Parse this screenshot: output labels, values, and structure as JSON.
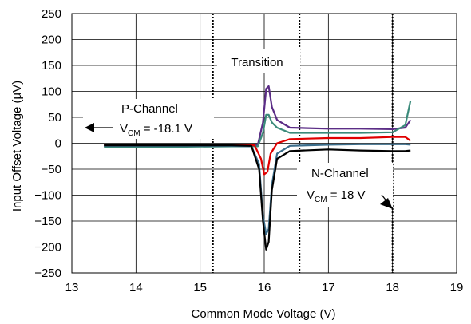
{
  "chart_data": {
    "type": "line",
    "title": "",
    "xlabel": "Common Mode Voltage (V)",
    "ylabel": "Input Offset Voltage (µV)",
    "xlim": [
      13,
      19
    ],
    "ylim": [
      -250,
      250
    ],
    "xticks": [
      "13",
      "14",
      "15",
      "16",
      "17",
      "18",
      "19"
    ],
    "yticks": [
      "250",
      "200",
      "150",
      "100",
      "50",
      "0",
      "−50",
      "−100",
      "−150",
      "−200",
      "−250"
    ],
    "grid": true,
    "legend": "none",
    "annotations": {
      "transition": "Transition",
      "p_channel": "P-Channel",
      "p_vcm_prefix": "V",
      "p_vcm_sub": "CM",
      "p_vcm_value": " = -18.1 V",
      "n_channel": "N-Channel",
      "n_vcm_prefix": "V",
      "n_vcm_sub": "CM",
      "n_vcm_value": " = 18 V"
    },
    "region_markers": [
      {
        "x": 15.2,
        "style": "dotted"
      },
      {
        "x": 16.55,
        "style": "dotted"
      },
      {
        "x": 18.0,
        "style": "dotted"
      }
    ],
    "series": [
      {
        "color": "#5b2d86",
        "x": [
          13.5,
          14.5,
          15.5,
          15.9,
          15.98,
          16.03,
          16.07,
          16.12,
          16.2,
          16.4,
          17.0,
          17.5,
          18.0,
          18.2,
          18.28
        ],
        "y": [
          -3,
          -3,
          -3,
          -3,
          40,
          105,
          110,
          70,
          45,
          30,
          28,
          28,
          27,
          30,
          45
        ]
      },
      {
        "color": "#3a8a7a",
        "x": [
          13.5,
          14.5,
          15.5,
          15.9,
          15.98,
          16.03,
          16.07,
          16.12,
          16.2,
          16.4,
          17.0,
          17.5,
          18.0,
          18.2,
          18.28
        ],
        "y": [
          -7,
          -7,
          -6,
          -6,
          20,
          55,
          55,
          40,
          30,
          20,
          20,
          20,
          21,
          35,
          82
        ]
      },
      {
        "color": "#e00000",
        "x": [
          13.5,
          14.5,
          15.5,
          15.85,
          15.95,
          16.0,
          16.05,
          16.1,
          16.2,
          16.4,
          17.0,
          17.5,
          18.0,
          18.2,
          18.28
        ],
        "y": [
          -4,
          -4,
          -4,
          -4,
          -30,
          -60,
          -55,
          -20,
          0,
          8,
          10,
          10,
          12,
          12,
          5
        ]
      },
      {
        "color": "#3c6e8c",
        "x": [
          13.5,
          14.5,
          15.5,
          15.8,
          15.92,
          15.98,
          16.03,
          16.07,
          16.12,
          16.2,
          16.4,
          17.0,
          17.5,
          18.0,
          18.2,
          18.28
        ],
        "y": [
          -5,
          -5,
          -5,
          -6,
          -40,
          -140,
          -175,
          -165,
          -80,
          -20,
          -5,
          -3,
          -2,
          -2,
          -2,
          -3
        ]
      },
      {
        "color": "#000000",
        "x": [
          13.5,
          14.5,
          15.5,
          15.8,
          15.92,
          15.98,
          16.03,
          16.07,
          16.12,
          16.2,
          16.4,
          17.0,
          17.5,
          18.0,
          18.2,
          18.28
        ],
        "y": [
          -4,
          -4,
          -4,
          -5,
          -50,
          -150,
          -205,
          -190,
          -90,
          -30,
          -15,
          -12,
          -14,
          -15,
          -15,
          -14
        ]
      }
    ]
  }
}
